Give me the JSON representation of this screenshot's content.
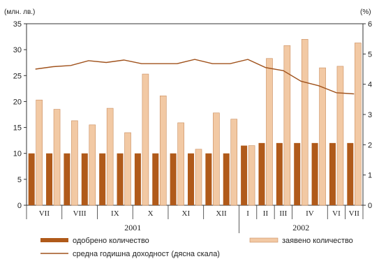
{
  "chart_data": {
    "type": "bar",
    "left_unit": "(млн. лв.)",
    "right_unit": "(%)",
    "left_ylim": [
      0,
      35
    ],
    "left_ticks": [
      "0",
      "5",
      "10",
      "15",
      "20",
      "25",
      "30",
      "35"
    ],
    "right_ylim": [
      0,
      6
    ],
    "right_ticks": [
      "0",
      "1",
      "2",
      "3",
      "4",
      "5",
      "6"
    ],
    "month_labels": [
      {
        "label": "VII",
        "start": 0,
        "end": 2
      },
      {
        "label": "VIII",
        "start": 2,
        "end": 4
      },
      {
        "label": "IX",
        "start": 4,
        "end": 6
      },
      {
        "label": "X",
        "start": 6,
        "end": 8
      },
      {
        "label": "XI",
        "start": 8,
        "end": 10
      },
      {
        "label": "XII",
        "start": 10,
        "end": 12
      },
      {
        "label": "I",
        "start": 12,
        "end": 13
      },
      {
        "label": "II",
        "start": 13,
        "end": 14
      },
      {
        "label": "III",
        "start": 14,
        "end": 15
      },
      {
        "label": "IV",
        "start": 15,
        "end": 17
      },
      {
        "label": "VI",
        "start": 17,
        "end": 18
      },
      {
        "label": "VII",
        "start": 18,
        "end": 19
      }
    ],
    "years": [
      {
        "label": "2001",
        "start": 0,
        "end": 12
      },
      {
        "label": "2002",
        "start": 12,
        "end": 19
      }
    ],
    "series": [
      {
        "name": "одобрено количество",
        "kind": "bar",
        "color": "#b05a1a",
        "values": [
          10,
          10,
          10,
          10,
          10,
          10,
          10,
          10,
          10,
          10,
          10,
          10,
          11.5,
          12,
          12,
          12,
          12,
          12,
          12
        ]
      },
      {
        "name": "заявено количество",
        "kind": "bar",
        "color": "#f2c9a4",
        "values": [
          20.3,
          18.5,
          16.3,
          15.5,
          18.7,
          14,
          25.3,
          21.1,
          15.9,
          10.8,
          17.8,
          16.6,
          11.5,
          28.3,
          30.8,
          32,
          26.5,
          26.8,
          31.3
        ]
      },
      {
        "name": "средна годишна доходност (дясна скала)",
        "kind": "line",
        "axis": "right",
        "color": "#a0521c",
        "values": [
          4.5,
          4.58,
          4.62,
          4.78,
          4.72,
          4.8,
          4.68,
          4.68,
          4.68,
          4.82,
          4.68,
          4.68,
          4.82,
          4.55,
          4.45,
          4.1,
          3.95,
          3.72,
          3.68
        ]
      }
    ]
  }
}
